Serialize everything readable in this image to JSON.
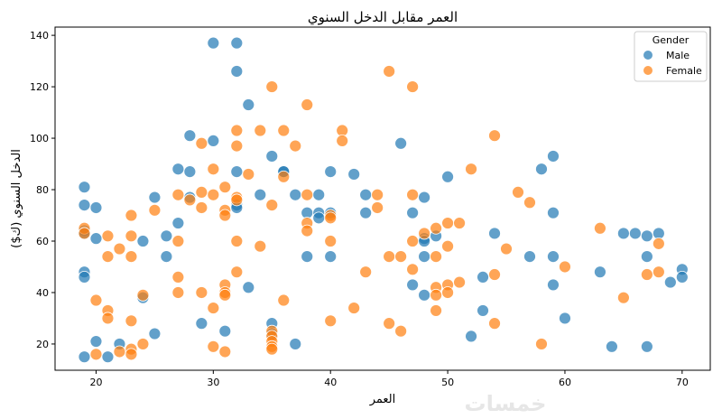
{
  "chart_data": {
    "type": "scatter",
    "title": "العمر مقابل الدخل السنوي",
    "xlabel": "العمر",
    "ylabel": "الدخل السنوي (ك$)",
    "xlim": [
      16.5,
      72.4
    ],
    "ylim": [
      9.8,
      143.2
    ],
    "xticks": [
      20,
      30,
      40,
      50,
      60,
      70
    ],
    "yticks": [
      20,
      40,
      60,
      80,
      100,
      120,
      140
    ],
    "grid": false,
    "legend": {
      "title": "Gender",
      "placement": "top-right"
    },
    "series": [
      {
        "name": "Male",
        "color": "#1f77b4",
        "points": [
          [
            19,
            81
          ],
          [
            19,
            74
          ],
          [
            20,
            73
          ],
          [
            19,
            64
          ],
          [
            19,
            63
          ],
          [
            19,
            48
          ],
          [
            19,
            46
          ],
          [
            20,
            61
          ],
          [
            20,
            21
          ],
          [
            19,
            15
          ],
          [
            21,
            15
          ],
          [
            22,
            20
          ],
          [
            24,
            38
          ],
          [
            24,
            60
          ],
          [
            25,
            77
          ],
          [
            25,
            24
          ],
          [
            26,
            62
          ],
          [
            26,
            54
          ],
          [
            27,
            88
          ],
          [
            27,
            67
          ],
          [
            28,
            101
          ],
          [
            28,
            87
          ],
          [
            28,
            77
          ],
          [
            29,
            28
          ],
          [
            30,
            137
          ],
          [
            32,
            137
          ],
          [
            32,
            126
          ],
          [
            30,
            99
          ],
          [
            32,
            87
          ],
          [
            32,
            74
          ],
          [
            32,
            73
          ],
          [
            33,
            113
          ],
          [
            31,
            25
          ],
          [
            33,
            42
          ],
          [
            34,
            78
          ],
          [
            35,
            93
          ],
          [
            35,
            28
          ],
          [
            35,
            24
          ],
          [
            36,
            87
          ],
          [
            36,
            87
          ],
          [
            37,
            78
          ],
          [
            37,
            20
          ],
          [
            38,
            71
          ],
          [
            38,
            54
          ],
          [
            39,
            78
          ],
          [
            39,
            71
          ],
          [
            39,
            69
          ],
          [
            40,
            87
          ],
          [
            40,
            71
          ],
          [
            40,
            54
          ],
          [
            42,
            86
          ],
          [
            43,
            78
          ],
          [
            43,
            71
          ],
          [
            46,
            98
          ],
          [
            47,
            71
          ],
          [
            47,
            43
          ],
          [
            48,
            77
          ],
          [
            48,
            61
          ],
          [
            48,
            60
          ],
          [
            48,
            54
          ],
          [
            48,
            39
          ],
          [
            49,
            62
          ],
          [
            50,
            85
          ],
          [
            52,
            23
          ],
          [
            53,
            46
          ],
          [
            53,
            33
          ],
          [
            54,
            63
          ],
          [
            57,
            54
          ],
          [
            58,
            88
          ],
          [
            59,
            93
          ],
          [
            59,
            71
          ],
          [
            59,
            54
          ],
          [
            59,
            43
          ],
          [
            60,
            30
          ],
          [
            63,
            48
          ],
          [
            64,
            19
          ],
          [
            65,
            63
          ],
          [
            66,
            63
          ],
          [
            67,
            62
          ],
          [
            67,
            54
          ],
          [
            67,
            19
          ],
          [
            68,
            63
          ],
          [
            69,
            44
          ],
          [
            70,
            49
          ],
          [
            70,
            46
          ]
        ]
      },
      {
        "name": "Female",
        "color": "#ff7f0e",
        "points": [
          [
            19,
            65
          ],
          [
            19,
            63
          ],
          [
            20,
            37
          ],
          [
            20,
            16
          ],
          [
            21,
            62
          ],
          [
            21,
            54
          ],
          [
            21,
            33
          ],
          [
            21,
            30
          ],
          [
            22,
            57
          ],
          [
            22,
            17
          ],
          [
            23,
            70
          ],
          [
            23,
            62
          ],
          [
            23,
            54
          ],
          [
            23,
            29
          ],
          [
            23,
            18
          ],
          [
            23,
            16
          ],
          [
            24,
            39
          ],
          [
            24,
            20
          ],
          [
            25,
            72
          ],
          [
            27,
            78
          ],
          [
            27,
            60
          ],
          [
            27,
            46
          ],
          [
            27,
            40
          ],
          [
            28,
            76
          ],
          [
            29,
            98
          ],
          [
            29,
            79
          ],
          [
            29,
            73
          ],
          [
            29,
            40
          ],
          [
            30,
            88
          ],
          [
            30,
            78
          ],
          [
            30,
            34
          ],
          [
            30,
            19
          ],
          [
            31,
            81
          ],
          [
            31,
            72
          ],
          [
            31,
            70
          ],
          [
            31,
            43
          ],
          [
            31,
            40
          ],
          [
            31,
            39
          ],
          [
            31,
            17
          ],
          [
            32,
            103
          ],
          [
            32,
            97
          ],
          [
            32,
            77
          ],
          [
            32,
            76
          ],
          [
            32,
            60
          ],
          [
            32,
            48
          ],
          [
            33,
            86
          ],
          [
            34,
            103
          ],
          [
            34,
            58
          ],
          [
            35,
            120
          ],
          [
            35,
            74
          ],
          [
            35,
            25
          ],
          [
            35,
            23
          ],
          [
            35,
            21
          ],
          [
            35,
            19
          ],
          [
            35,
            18
          ],
          [
            36,
            103
          ],
          [
            36,
            85
          ],
          [
            36,
            37
          ],
          [
            37,
            97
          ],
          [
            38,
            113
          ],
          [
            38,
            78
          ],
          [
            38,
            67
          ],
          [
            38,
            64
          ],
          [
            40,
            70
          ],
          [
            40,
            69
          ],
          [
            40,
            60
          ],
          [
            40,
            29
          ],
          [
            41,
            103
          ],
          [
            41,
            99
          ],
          [
            42,
            34
          ],
          [
            43,
            48
          ],
          [
            44,
            78
          ],
          [
            44,
            73
          ],
          [
            45,
            126
          ],
          [
            45,
            54
          ],
          [
            45,
            28
          ],
          [
            46,
            54
          ],
          [
            46,
            25
          ],
          [
            47,
            120
          ],
          [
            47,
            78
          ],
          [
            47,
            60
          ],
          [
            47,
            49
          ],
          [
            48,
            63
          ],
          [
            49,
            65
          ],
          [
            49,
            54
          ],
          [
            49,
            42
          ],
          [
            49,
            39
          ],
          [
            49,
            33
          ],
          [
            50,
            67
          ],
          [
            50,
            58
          ],
          [
            50,
            43
          ],
          [
            50,
            40
          ],
          [
            51,
            67
          ],
          [
            51,
            44
          ],
          [
            52,
            88
          ],
          [
            54,
            101
          ],
          [
            54,
            47
          ],
          [
            54,
            28
          ],
          [
            55,
            57
          ],
          [
            56,
            79
          ],
          [
            57,
            75
          ],
          [
            58,
            20
          ],
          [
            60,
            50
          ],
          [
            63,
            65
          ],
          [
            65,
            38
          ],
          [
            67,
            47
          ],
          [
            68,
            59
          ],
          [
            68,
            48
          ]
        ]
      }
    ]
  },
  "watermark": "خمسات"
}
